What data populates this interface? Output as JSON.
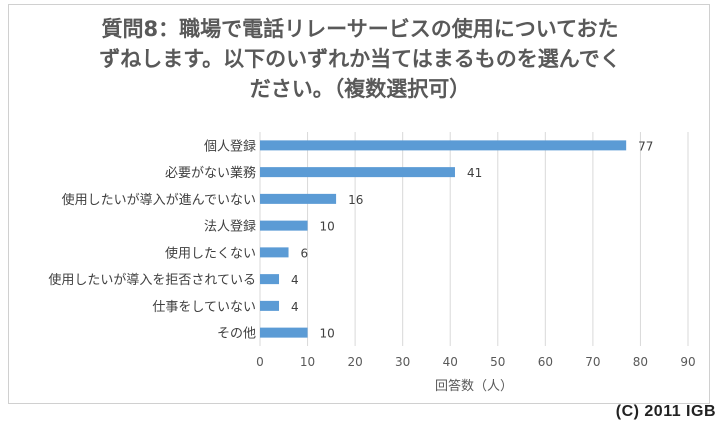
{
  "chart_data": {
    "type": "bar",
    "orientation": "horizontal",
    "title": "質問8：職場で電話リレーサービスの使用についておたずねします。以下のいずれか当てはまるものを選んでください。（複数選択可）",
    "title_lines": [
      "質問8：職場で電話リレーサービスの使用についておた",
      "ずねします。以下のいずれか当てはまるものを選んでく",
      "ださい。（複数選択可）"
    ],
    "categories": [
      "個人登録",
      "必要がない業務",
      "使用したいが導入が進んでいない",
      "法人登録",
      "使用したくない",
      "使用したいが導入を拒否されている",
      "仕事をしていない",
      "その他"
    ],
    "values": [
      77,
      41,
      16,
      10,
      6,
      4,
      4,
      10
    ],
    "xlabel": "回答数（人）",
    "ylabel": "",
    "xlim": [
      0,
      90
    ],
    "xticks": [
      0,
      10,
      20,
      30,
      40,
      50,
      60,
      70,
      80,
      90
    ],
    "grid": true,
    "legend": "none",
    "bar_color": "#5b9bd5",
    "grid_color": "#d9d9d9"
  },
  "copyright": "(C) 2011 IGB"
}
